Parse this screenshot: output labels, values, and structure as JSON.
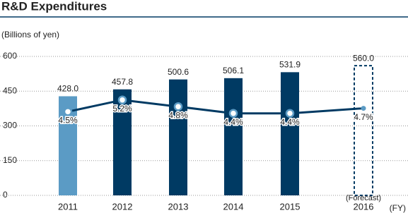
{
  "chart_data": {
    "type": "bar_line",
    "title": "R&D Expenditures",
    "y_label": "(Billions of yen)",
    "x_label": "(FY)",
    "annotation": "(Forecast)",
    "annotation_index": 5,
    "categories": [
      "2011",
      "2012",
      "2013",
      "2014",
      "2015",
      "2016"
    ],
    "ylim": [
      0,
      600
    ],
    "yticks": [
      0,
      150,
      300,
      450,
      600
    ],
    "grid": true,
    "y2lim": [
      -0.5,
      7.8
    ],
    "series": [
      {
        "type": "bar",
        "values": [
          428.0,
          457.8,
          500.6,
          506.1,
          531.9,
          560.0
        ],
        "value_labels": [
          "428.0",
          "457.8",
          "500.6",
          "506.1",
          "531.9",
          "560.0"
        ],
        "colors": [
          "#5b9bc5",
          "#003a63",
          "#003a63",
          "#003a63",
          "#003a63",
          "#003a63"
        ],
        "dashed": [
          false,
          false,
          false,
          false,
          false,
          true
        ]
      },
      {
        "type": "line",
        "axis": "y2",
        "color": "#003a63",
        "values": [
          4.5,
          5.2,
          4.8,
          4.4,
          4.4,
          4.7
        ],
        "value_labels": [
          "4.5%",
          "5.2%",
          "4.8%",
          "4.4%",
          "4.4%",
          "4.7%"
        ]
      }
    ]
  }
}
